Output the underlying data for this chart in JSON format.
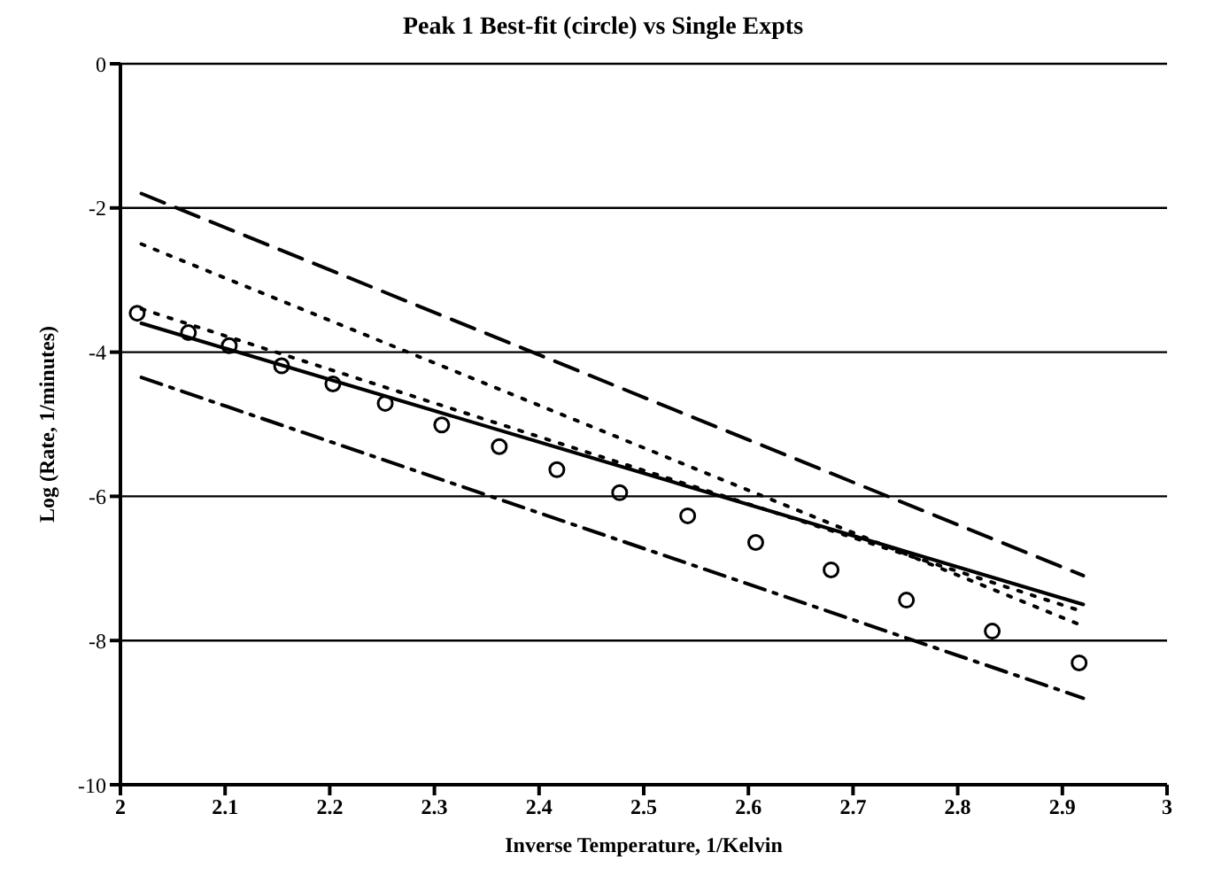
{
  "chart_data": {
    "type": "line",
    "title": "Peak 1 Best-fit (circle) vs Single Expts",
    "xlabel": "Inverse Temperature, 1/Kelvin",
    "ylabel": "Log (Rate, 1/minutes)",
    "xlim": [
      2,
      3
    ],
    "xticks": [
      2,
      2.1,
      2.2,
      2.3,
      2.4,
      2.5,
      2.6,
      2.7,
      2.8,
      2.9,
      3
    ],
    "ylim": [
      -10,
      0
    ],
    "yticks": [
      0,
      -2,
      -4,
      -6,
      -8,
      -10
    ],
    "grid": "y",
    "series": [
      {
        "type": "scatter",
        "marker": "circle",
        "color": "#000000",
        "x": [
          2.016,
          2.065,
          2.104,
          2.154,
          2.203,
          2.253,
          2.307,
          2.362,
          2.417,
          2.477,
          2.542,
          2.607,
          2.679,
          2.751,
          2.833,
          2.916
        ],
        "values": [
          -3.46,
          -3.73,
          -3.91,
          -4.19,
          -4.44,
          -4.71,
          -5.01,
          -5.31,
          -5.63,
          -5.95,
          -6.27,
          -6.64,
          -7.02,
          -7.44,
          -7.87,
          -8.31
        ]
      },
      {
        "line_style": "solid",
        "color": "#000000",
        "x": [
          2.02,
          2.92
        ],
        "values": [
          -3.6,
          -7.5
        ]
      },
      {
        "line_style": "dashed",
        "color": "#000000",
        "x": [
          2.02,
          2.92
        ],
        "values": [
          -1.8,
          -7.1
        ]
      },
      {
        "line_style": "dotted",
        "color": "#000000",
        "x": [
          2.02,
          2.92
        ],
        "values": [
          -2.5,
          -7.8
        ]
      },
      {
        "line_style": "dotted",
        "color": "#000000",
        "x": [
          2.02,
          2.92
        ],
        "values": [
          -3.4,
          -7.6
        ]
      },
      {
        "line_style": "dashdot",
        "color": "#000000",
        "x": [
          2.02,
          2.92
        ],
        "values": [
          -4.35,
          -8.8
        ]
      }
    ]
  }
}
